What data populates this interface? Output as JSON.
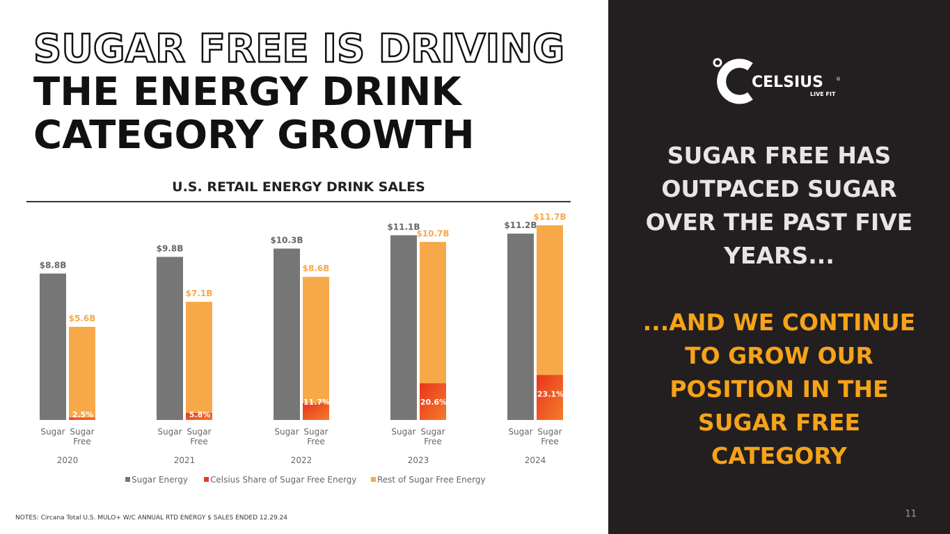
{
  "headline": {
    "line1": "SUGAR FREE IS DRIVING",
    "line2": "THE ENERGY DRINK",
    "line3": "CATEGORY GROWTH"
  },
  "notes": "NOTES: Circana Total U.S. MULO+ W/C ANNUAL RTD ENERGY $ SALES ENDED 12.29.24",
  "panel": {
    "brand": "CELSIUS",
    "brand_mark": "®",
    "tagline": "LIVE FIT",
    "text1": "SUGAR FREE HAS OUTPACED SUGAR OVER THE PAST FIVE YEARS...",
    "text2": "...AND WE CONTINUE TO GROW OUR POSITION IN THE SUGAR FREE CATEGORY"
  },
  "page_number": "11",
  "colors": {
    "sugar": "#767676",
    "rest": "#f7a94a",
    "celsius": "#e63d1f",
    "panel_bg": "#231f20",
    "accent": "#f6a319"
  },
  "chart_data": {
    "type": "bar",
    "title": "U.S. RETAIL ENERGY DRINK SALES",
    "categories": [
      "2020",
      "2021",
      "2022",
      "2023",
      "2024"
    ],
    "bar_labels": [
      "Sugar",
      "Sugar Free"
    ],
    "legend": [
      "Sugar Energy",
      "Celsius Share of Sugar Free Energy",
      "Rest of Sugar Free Energy"
    ],
    "legend_position": "bottom",
    "value_unit": "$B",
    "ylim": [
      0,
      11.7
    ],
    "series": [
      {
        "name": "Sugar Energy",
        "values": [
          8.8,
          9.8,
          10.3,
          11.1,
          11.2
        ],
        "labels": [
          "$8.8B",
          "$9.8B",
          "$10.3B",
          "$11.1B",
          "$11.2B"
        ]
      },
      {
        "name": "Sugar Free",
        "values": [
          5.6,
          7.1,
          8.6,
          10.7,
          11.7
        ],
        "labels": [
          "$5.6B",
          "$7.1B",
          "$8.6B",
          "$10.7B",
          "$11.7B"
        ],
        "celsius_share_pct": [
          2.5,
          5.8,
          11.7,
          20.6,
          23.1
        ],
        "celsius_share_labels": [
          "2.5%",
          "5.8%",
          "11.7%",
          "20.6%",
          "23.1%"
        ]
      }
    ]
  }
}
